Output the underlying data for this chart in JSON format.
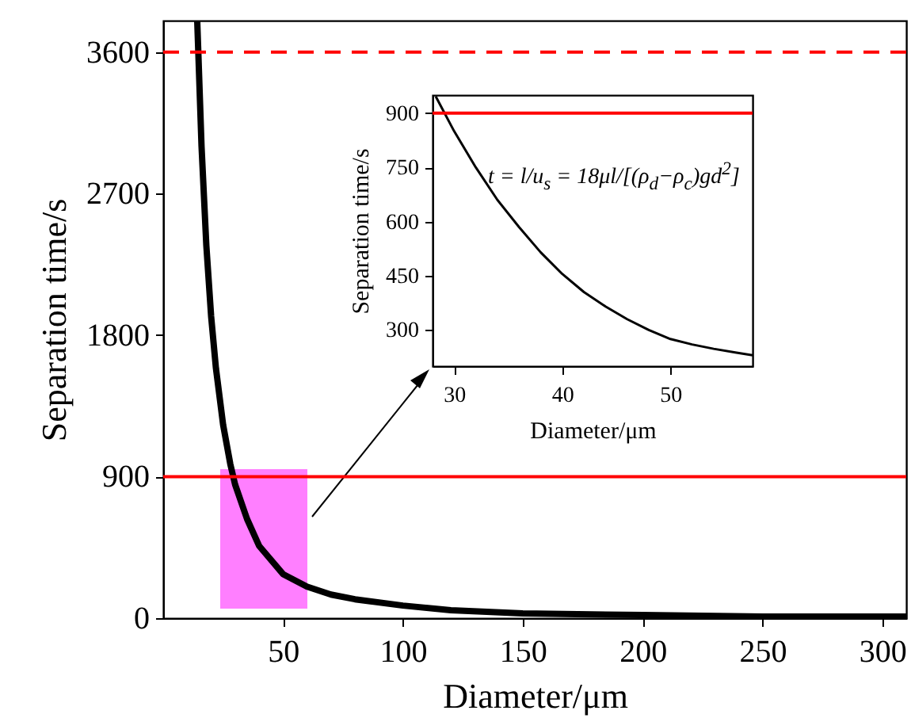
{
  "chart_data": [
    {
      "type": "line",
      "xlabel": "Diameter/μm",
      "ylabel": "Separation time/s",
      "series": [
        {
          "color": "#000000",
          "x": [
            14.2,
            16,
            18,
            20,
            22,
            25,
            28,
            30,
            35,
            40,
            50,
            60,
            70,
            80,
            100,
            120,
            150,
            200,
            250,
            310
          ],
          "values": [
            3800,
            3000,
            2370,
            1920,
            1590,
            1230,
            980,
            850,
            630,
            460,
            280,
            200,
            150,
            120,
            80,
            50,
            30,
            20,
            10,
            10
          ]
        }
      ],
      "xlim": [
        0,
        310
      ],
      "ylim": [
        0,
        3800
      ],
      "xticks": [
        50,
        100,
        150,
        200,
        250,
        300
      ],
      "yticks": [
        0,
        900,
        1800,
        2700,
        3600
      ],
      "ref_lines": [
        {
          "axis": "y",
          "value": 3600,
          "color": "#ff0000",
          "line_style": "dashed"
        },
        {
          "axis": "y",
          "value": 900,
          "color": "#ff0000",
          "line_style": "solid"
        }
      ]
    },
    {
      "type": "line",
      "xlabel": "Diameter/μm",
      "ylabel": "Separation time/s",
      "series": [
        {
          "color": "#000000",
          "x": [
            28.3,
            30,
            32,
            34,
            36,
            38,
            40,
            42,
            44,
            46,
            48,
            50,
            52,
            54,
            56,
            57.6
          ],
          "values": [
            946,
            850,
            750,
            660,
            585,
            515,
            455,
            405,
            365,
            330,
            300,
            275,
            260,
            248,
            238,
            230
          ]
        }
      ],
      "xlim": [
        28,
        57.6
      ],
      "ylim": [
        200,
        950
      ],
      "xticks": [
        30,
        40,
        50
      ],
      "yticks": [
        300,
        450,
        600,
        750,
        900
      ],
      "ref_lines": [
        {
          "axis": "y",
          "value": 900,
          "color": "#ff0000",
          "line_style": "solid"
        }
      ],
      "annotations": [
        "t = l/u$_{s}$ = 18μl/[(ρ$_{d}$−ρ$_{c}$)gd$^{2}$]"
      ]
    }
  ]
}
